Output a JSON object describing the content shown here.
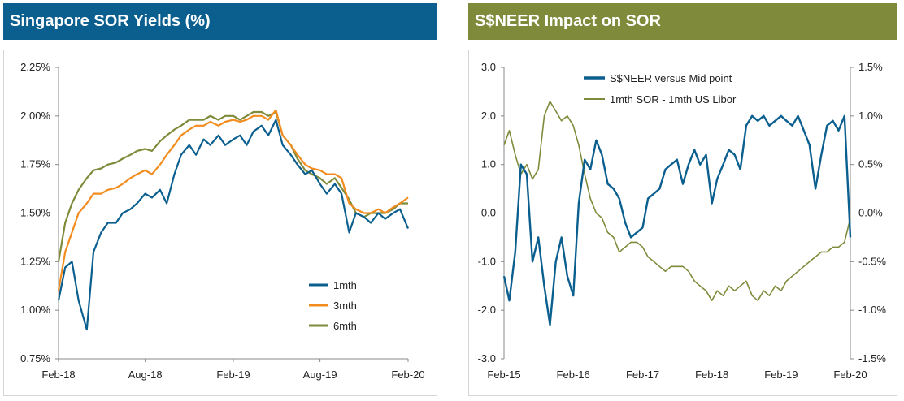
{
  "left": {
    "title": "Singapore SOR Yields (%)"
  },
  "right": {
    "title": "S$NEER Impact on SOR"
  },
  "chart_data": [
    {
      "type": "line",
      "title": "Singapore SOR Yields (%)",
      "xlabel": "",
      "ylabel": "",
      "x_ticks": [
        "Feb-18",
        "Aug-18",
        "Feb-19",
        "Aug-19",
        "Feb-20"
      ],
      "x_tick_dates": [
        "2018-02-01",
        "2018-08-01",
        "2019-02-01",
        "2019-08-01",
        "2020-02-01"
      ],
      "y_ticks": [
        "0.75%",
        "1.00%",
        "1.25%",
        "1.50%",
        "1.75%",
        "2.00%",
        "2.25%"
      ],
      "ylim": [
        0.75,
        2.25
      ],
      "legend": "bottom-right",
      "colors": {
        "1mth": "#0b5f8f",
        "3mth": "#f28c1e",
        "6mth": "#7f8b3a"
      },
      "series": [
        {
          "name": "1mth",
          "x": [
            "2018-02-01",
            "2018-02-15",
            "2018-03-01",
            "2018-03-15",
            "2018-04-01",
            "2018-04-15",
            "2018-05-01",
            "2018-05-15",
            "2018-06-01",
            "2018-06-15",
            "2018-07-01",
            "2018-07-15",
            "2018-08-01",
            "2018-08-15",
            "2018-09-01",
            "2018-09-15",
            "2018-10-01",
            "2018-10-15",
            "2018-11-01",
            "2018-11-15",
            "2018-12-01",
            "2018-12-15",
            "2019-01-01",
            "2019-01-15",
            "2019-02-01",
            "2019-02-15",
            "2019-03-01",
            "2019-03-15",
            "2019-04-01",
            "2019-04-15",
            "2019-05-01",
            "2019-05-15",
            "2019-06-01",
            "2019-06-15",
            "2019-07-01",
            "2019-07-15",
            "2019-08-01",
            "2019-08-15",
            "2019-09-01",
            "2019-09-15",
            "2019-10-01",
            "2019-10-15",
            "2019-11-01",
            "2019-11-15",
            "2019-12-01",
            "2019-12-15",
            "2020-01-01",
            "2020-01-15",
            "2020-02-01"
          ],
          "values": [
            1.05,
            1.22,
            1.25,
            1.05,
            0.9,
            1.3,
            1.4,
            1.45,
            1.45,
            1.5,
            1.52,
            1.55,
            1.6,
            1.58,
            1.62,
            1.55,
            1.7,
            1.8,
            1.85,
            1.8,
            1.88,
            1.85,
            1.9,
            1.85,
            1.88,
            1.9,
            1.85,
            1.92,
            1.95,
            1.9,
            1.98,
            1.85,
            1.8,
            1.75,
            1.7,
            1.72,
            1.65,
            1.6,
            1.65,
            1.6,
            1.4,
            1.5,
            1.48,
            1.45,
            1.5,
            1.47,
            1.5,
            1.52,
            1.42
          ]
        },
        {
          "name": "3mth",
          "x": [
            "2018-02-01",
            "2018-02-15",
            "2018-03-01",
            "2018-03-15",
            "2018-04-01",
            "2018-04-15",
            "2018-05-01",
            "2018-05-15",
            "2018-06-01",
            "2018-06-15",
            "2018-07-01",
            "2018-07-15",
            "2018-08-01",
            "2018-08-15",
            "2018-09-01",
            "2018-09-15",
            "2018-10-01",
            "2018-10-15",
            "2018-11-01",
            "2018-11-15",
            "2018-12-01",
            "2018-12-15",
            "2019-01-01",
            "2019-01-15",
            "2019-02-01",
            "2019-02-15",
            "2019-03-01",
            "2019-03-15",
            "2019-04-01",
            "2019-04-15",
            "2019-05-01",
            "2019-05-15",
            "2019-06-01",
            "2019-06-15",
            "2019-07-01",
            "2019-07-15",
            "2019-08-01",
            "2019-08-15",
            "2019-09-01",
            "2019-09-15",
            "2019-10-01",
            "2019-10-15",
            "2019-11-01",
            "2019-11-15",
            "2019-12-01",
            "2019-12-15",
            "2020-01-01",
            "2020-01-15",
            "2020-02-01"
          ],
          "values": [
            1.1,
            1.3,
            1.4,
            1.5,
            1.55,
            1.6,
            1.6,
            1.62,
            1.63,
            1.65,
            1.68,
            1.7,
            1.72,
            1.7,
            1.75,
            1.8,
            1.85,
            1.9,
            1.93,
            1.95,
            1.95,
            1.97,
            1.95,
            1.97,
            1.98,
            1.97,
            1.98,
            2.0,
            2.0,
            1.98,
            2.03,
            1.9,
            1.85,
            1.8,
            1.75,
            1.73,
            1.72,
            1.7,
            1.7,
            1.68,
            1.55,
            1.52,
            1.5,
            1.5,
            1.52,
            1.5,
            1.53,
            1.55,
            1.58
          ]
        },
        {
          "name": "6mth",
          "x": [
            "2018-02-01",
            "2018-02-15",
            "2018-03-01",
            "2018-03-15",
            "2018-04-01",
            "2018-04-15",
            "2018-05-01",
            "2018-05-15",
            "2018-06-01",
            "2018-06-15",
            "2018-07-01",
            "2018-07-15",
            "2018-08-01",
            "2018-08-15",
            "2018-09-01",
            "2018-09-15",
            "2018-10-01",
            "2018-10-15",
            "2018-11-01",
            "2018-11-15",
            "2018-12-01",
            "2018-12-15",
            "2019-01-01",
            "2019-01-15",
            "2019-02-01",
            "2019-02-15",
            "2019-03-01",
            "2019-03-15",
            "2019-04-01",
            "2019-04-15",
            "2019-05-01",
            "2019-05-15",
            "2019-06-01",
            "2019-06-15",
            "2019-07-01",
            "2019-07-15",
            "2019-08-01",
            "2019-08-15",
            "2019-09-01",
            "2019-09-15",
            "2019-10-01",
            "2019-10-15",
            "2019-11-01",
            "2019-11-15",
            "2019-12-01",
            "2019-12-15",
            "2020-01-01",
            "2020-01-15",
            "2020-02-01"
          ],
          "values": [
            1.25,
            1.45,
            1.55,
            1.62,
            1.68,
            1.72,
            1.73,
            1.75,
            1.76,
            1.78,
            1.8,
            1.82,
            1.83,
            1.82,
            1.87,
            1.9,
            1.93,
            1.95,
            1.98,
            1.98,
            1.98,
            2.0,
            1.98,
            2.0,
            2.0,
            1.98,
            2.0,
            2.02,
            2.02,
            2.0,
            2.02,
            1.9,
            1.85,
            1.78,
            1.72,
            1.7,
            1.68,
            1.65,
            1.68,
            1.63,
            1.57,
            1.5,
            1.48,
            1.5,
            1.5,
            1.5,
            1.52,
            1.55,
            1.55
          ]
        }
      ]
    },
    {
      "type": "line",
      "title": "S$NEER Impact on SOR",
      "xlabel": "",
      "ylabel": "",
      "x_ticks": [
        "Feb-15",
        "Feb-16",
        "Feb-17",
        "Feb-18",
        "Feb-19",
        "Feb-20"
      ],
      "x_tick_dates": [
        "2015-02-01",
        "2016-02-01",
        "2017-02-01",
        "2018-02-01",
        "2019-02-01",
        "2020-02-01"
      ],
      "y_left_ticks": [
        "-3.0",
        "-2.0",
        "-1.0",
        "0.0",
        "1.0",
        "2.0",
        "3.0"
      ],
      "y_left_range": [
        -3.0,
        3.0
      ],
      "y_right_ticks": [
        "-1.5%",
        "-1.0%",
        "-0.5%",
        "0.0%",
        "0.5%",
        "1.0%",
        "1.5%"
      ],
      "y_right_range": [
        -1.5,
        1.5
      ],
      "legend": "top-center",
      "colors": {
        "S$NEER versus Mid point": "#0b5f8f",
        "1mth SOR - 1mth US Libor": "#7f8b3a"
      },
      "series": [
        {
          "name": "S$NEER versus Mid point",
          "axis": "left",
          "x": [
            "2015-02-01",
            "2015-03-01",
            "2015-04-01",
            "2015-05-01",
            "2015-06-01",
            "2015-07-01",
            "2015-08-01",
            "2015-09-01",
            "2015-10-01",
            "2015-11-01",
            "2015-12-01",
            "2016-01-01",
            "2016-02-01",
            "2016-03-01",
            "2016-04-01",
            "2016-05-01",
            "2016-06-01",
            "2016-07-01",
            "2016-08-01",
            "2016-09-01",
            "2016-10-01",
            "2016-11-01",
            "2016-12-01",
            "2017-01-01",
            "2017-02-01",
            "2017-03-01",
            "2017-04-01",
            "2017-05-01",
            "2017-06-01",
            "2017-07-01",
            "2017-08-01",
            "2017-09-01",
            "2017-10-01",
            "2017-11-01",
            "2017-12-01",
            "2018-01-01",
            "2018-02-01",
            "2018-03-01",
            "2018-04-01",
            "2018-05-01",
            "2018-06-01",
            "2018-07-01",
            "2018-08-01",
            "2018-09-01",
            "2018-10-01",
            "2018-11-01",
            "2018-12-01",
            "2019-01-01",
            "2019-02-01",
            "2019-03-01",
            "2019-04-01",
            "2019-05-01",
            "2019-06-01",
            "2019-07-01",
            "2019-08-01",
            "2019-09-01",
            "2019-10-01",
            "2019-11-01",
            "2019-12-01",
            "2020-01-01",
            "2020-02-01"
          ],
          "values": [
            -1.3,
            -1.8,
            -0.8,
            1.0,
            0.8,
            -1.0,
            -0.5,
            -1.5,
            -2.3,
            -1.0,
            -0.5,
            -1.3,
            -1.7,
            0.2,
            1.1,
            0.9,
            1.5,
            1.2,
            0.6,
            0.5,
            0.3,
            -0.2,
            -0.5,
            -0.4,
            -0.3,
            0.3,
            0.4,
            0.5,
            0.9,
            1.0,
            1.1,
            0.6,
            1.0,
            1.3,
            1.0,
            1.2,
            0.2,
            0.7,
            1.0,
            1.3,
            1.2,
            0.9,
            1.8,
            2.0,
            1.9,
            2.0,
            1.8,
            1.9,
            2.0,
            1.9,
            1.8,
            2.0,
            1.7,
            1.4,
            0.5,
            1.2,
            1.8,
            1.9,
            1.7,
            2.0,
            -0.5
          ]
        },
        {
          "name": "1mth SOR - 1mth US Libor",
          "axis": "right",
          "x": [
            "2015-02-01",
            "2015-03-01",
            "2015-04-01",
            "2015-05-01",
            "2015-06-01",
            "2015-07-01",
            "2015-08-01",
            "2015-09-01",
            "2015-10-01",
            "2015-11-01",
            "2015-12-01",
            "2016-01-01",
            "2016-02-01",
            "2016-03-01",
            "2016-04-01",
            "2016-05-01",
            "2016-06-01",
            "2016-07-01",
            "2016-08-01",
            "2016-09-01",
            "2016-10-01",
            "2016-11-01",
            "2016-12-01",
            "2017-01-01",
            "2017-02-01",
            "2017-03-01",
            "2017-04-01",
            "2017-05-01",
            "2017-06-01",
            "2017-07-01",
            "2017-08-01",
            "2017-09-01",
            "2017-10-01",
            "2017-11-01",
            "2017-12-01",
            "2018-01-01",
            "2018-02-01",
            "2018-03-01",
            "2018-04-01",
            "2018-05-01",
            "2018-06-01",
            "2018-07-01",
            "2018-08-01",
            "2018-09-01",
            "2018-10-01",
            "2018-11-01",
            "2018-12-01",
            "2019-01-01",
            "2019-02-01",
            "2019-03-01",
            "2019-04-01",
            "2019-05-01",
            "2019-06-01",
            "2019-07-01",
            "2019-08-01",
            "2019-09-01",
            "2019-10-01",
            "2019-11-01",
            "2019-12-01",
            "2020-01-01",
            "2020-02-01"
          ],
          "values": [
            0.7,
            0.85,
            0.6,
            0.4,
            0.5,
            0.35,
            0.45,
            1.0,
            1.15,
            1.05,
            0.95,
            1.0,
            0.9,
            0.7,
            0.4,
            0.15,
            0.0,
            -0.05,
            -0.2,
            -0.25,
            -0.4,
            -0.35,
            -0.3,
            -0.3,
            -0.35,
            -0.45,
            -0.5,
            -0.55,
            -0.6,
            -0.55,
            -0.55,
            -0.55,
            -0.6,
            -0.7,
            -0.75,
            -0.8,
            -0.9,
            -0.8,
            -0.85,
            -0.75,
            -0.8,
            -0.75,
            -0.7,
            -0.85,
            -0.9,
            -0.8,
            -0.85,
            -0.75,
            -0.8,
            -0.7,
            -0.65,
            -0.6,
            -0.55,
            -0.5,
            -0.45,
            -0.4,
            -0.4,
            -0.35,
            -0.35,
            -0.3,
            -0.05
          ]
        }
      ]
    }
  ]
}
